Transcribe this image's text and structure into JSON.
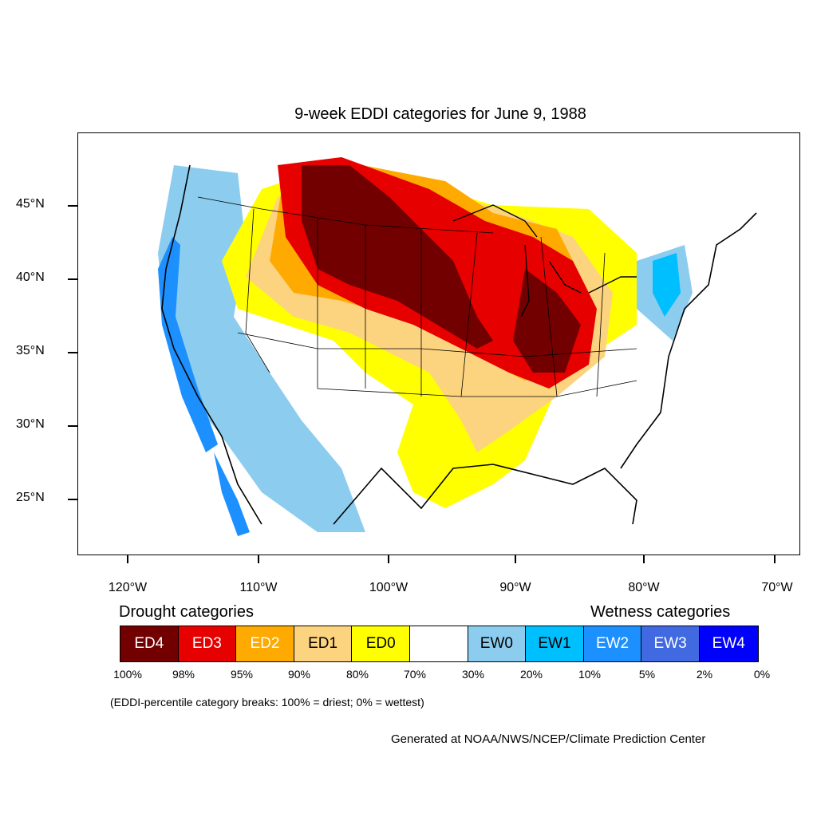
{
  "title": "9-week EDDI categories for June 9, 1988",
  "lat_labels": [
    "45°N",
    "40°N",
    "35°N",
    "30°N",
    "25°N"
  ],
  "lon_labels": [
    "120°W",
    "110°W",
    "100°W",
    "90°W",
    "80°W",
    "70°W"
  ],
  "legend": {
    "drought_heading": "Drought categories",
    "wetness_heading": "Wetness categories",
    "categories": [
      {
        "label": "ED4",
        "color": "#730000",
        "text_color": "#ffffff"
      },
      {
        "label": "ED3",
        "color": "#e60000",
        "text_color": "#ffffff"
      },
      {
        "label": "ED2",
        "color": "#ffaa00",
        "text_color": "#ffffff"
      },
      {
        "label": "ED1",
        "color": "#fcd37f",
        "text_color": "#000000"
      },
      {
        "label": "ED0",
        "color": "#ffff00",
        "text_color": "#000000"
      },
      {
        "label": "",
        "color": "#ffffff",
        "text_color": "#000000"
      },
      {
        "label": "EW0",
        "color": "#8ccdef",
        "text_color": "#000000"
      },
      {
        "label": "EW1",
        "color": "#00bfff",
        "text_color": "#000000"
      },
      {
        "label": "EW2",
        "color": "#1d90ff",
        "text_color": "#ffffff"
      },
      {
        "label": "EW3",
        "color": "#4169e1",
        "text_color": "#ffffff"
      },
      {
        "label": "EW4",
        "color": "#0000ff",
        "text_color": "#ffffff"
      }
    ],
    "breaks": [
      "100%",
      "98%",
      "95%",
      "90%",
      "80%",
      "70%",
      "30%",
      "20%",
      "10%",
      "5%",
      "2%",
      "0%"
    ]
  },
  "note": "(EDDI-percentile category breaks: 100% = driest; 0% = wettest)",
  "credit": "Generated at NOAA/NWS/NCEP/Climate Prediction Center"
}
